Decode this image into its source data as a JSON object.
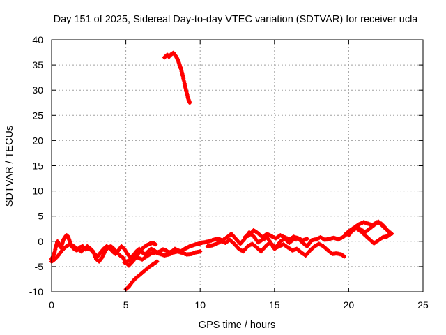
{
  "chart_data": {
    "type": "scatter",
    "title": "Day 151 of 2025, Sidereal Day-to-day VTEC variation (SDTVAR) for receiver ucla",
    "xlabel": "GPS time / hours",
    "ylabel": "SDTVAR / TECUs",
    "xlim": [
      0,
      25
    ],
    "ylim": [
      -10,
      40
    ],
    "x_ticks": [
      0,
      5,
      10,
      15,
      20,
      25
    ],
    "y_ticks": [
      -10,
      -5,
      0,
      5,
      10,
      15,
      20,
      25,
      30,
      35,
      40
    ],
    "grid": true,
    "legend": "none",
    "series": [
      {
        "name": "SDTVAR",
        "color": "#ff0000",
        "marker": "plus",
        "segments": [
          {
            "x": [
              0.0,
              0.1,
              0.2,
              0.3,
              0.4,
              0.5,
              0.6,
              0.7,
              0.8,
              0.9,
              1.0,
              1.1,
              1.2,
              1.3,
              1.5,
              1.7,
              1.9,
              2.1,
              2.3,
              2.5,
              2.7,
              2.9,
              3.1,
              3.3,
              3.5,
              3.7,
              3.9,
              4.1,
              4.3,
              4.5,
              4.7,
              4.9,
              5.1,
              5.3,
              5.5,
              5.7,
              5.9,
              6.1,
              6.3,
              6.5,
              6.7,
              6.9,
              7.1,
              7.3,
              7.5,
              7.7,
              7.9,
              8.1,
              8.3,
              8.5,
              8.7,
              8.9,
              9.1,
              9.3,
              9.5,
              9.7,
              9.9,
              10.1
            ],
            "y": [
              -3.5,
              -3.0,
              -2.2,
              -1.0,
              0.0,
              -0.5,
              -1.2,
              -0.6,
              0.3,
              0.8,
              1.2,
              1.0,
              0.2,
              -0.8,
              -1.5,
              -1.8,
              -1.2,
              -1.0,
              -1.6,
              -1.4,
              -1.8,
              -2.5,
              -3.0,
              -2.2,
              -1.5,
              -1.0,
              -1.3,
              -2.0,
              -2.5,
              -1.8,
              -1.0,
              -1.5,
              -2.5,
              -3.2,
              -2.8,
              -2.0,
              -1.5,
              -2.2,
              -2.6,
              -2.0,
              -1.5,
              -1.8,
              -2.2,
              -2.0,
              -1.6,
              -1.8,
              -2.2,
              -2.0,
              -1.5,
              -1.8,
              -2.0,
              -1.6,
              -1.3,
              -1.0,
              -0.8,
              -0.6,
              -0.5,
              -0.3
            ]
          },
          {
            "x": [
              0.0,
              0.2,
              0.4,
              0.6,
              0.8,
              1.0,
              1.2,
              1.4,
              1.6,
              1.8,
              2.0,
              2.2,
              2.4,
              2.6,
              2.8,
              3.0,
              3.2,
              3.4,
              3.6,
              3.8,
              4.0,
              4.2,
              4.4,
              4.6,
              4.8,
              5.0,
              5.2,
              5.4,
              5.6,
              5.8,
              6.0,
              6.2,
              6.4,
              6.6,
              6.8,
              7.0
            ],
            "y": [
              -4.0,
              -3.6,
              -3.0,
              -2.2,
              -1.5,
              -1.0,
              -0.6,
              -0.8,
              -1.2,
              -1.6,
              -2.0,
              -1.5,
              -1.0,
              -1.4,
              -2.0,
              -3.5,
              -4.0,
              -3.2,
              -2.0,
              -1.2,
              -1.0,
              -1.5,
              -2.2,
              -2.8,
              -3.2,
              -4.2,
              -4.8,
              -4.2,
              -3.5,
              -2.6,
              -1.8,
              -1.2,
              -0.8,
              -0.5,
              -0.3,
              -0.6
            ]
          },
          {
            "x": [
              5.0,
              5.2,
              5.4,
              5.6,
              5.8,
              6.0,
              6.2,
              6.4,
              6.6,
              6.8,
              7.0,
              7.1
            ],
            "y": [
              -9.5,
              -9.0,
              -8.2,
              -7.5,
              -7.0,
              -6.5,
              -6.0,
              -5.5,
              -5.0,
              -4.6,
              -4.2,
              -4.0
            ]
          },
          {
            "x": [
              4.9,
              5.2,
              5.5,
              5.8,
              6.1,
              6.4,
              6.7,
              7.0,
              7.3,
              7.6,
              7.9,
              8.2,
              8.5,
              8.8,
              9.1,
              9.4,
              9.7,
              10.0
            ],
            "y": [
              -4.2,
              -3.8,
              -3.4,
              -3.2,
              -3.6,
              -3.0,
              -2.4,
              -2.2,
              -2.5,
              -2.8,
              -2.6,
              -2.2,
              -2.0,
              -2.3,
              -2.6,
              -2.5,
              -2.2,
              -2.0
            ]
          },
          {
            "x": [
              7.6,
              7.7,
              7.8,
              7.9,
              8.0,
              8.1,
              8.2,
              8.3,
              8.4,
              8.5,
              8.6,
              8.7,
              8.8,
              8.9,
              9.0,
              9.1,
              9.2,
              9.3
            ],
            "y": [
              36.5,
              36.8,
              37.0,
              36.6,
              37.0,
              37.2,
              37.4,
              37.0,
              36.6,
              36.0,
              35.2,
              34.3,
              33.2,
              32.0,
              30.6,
              29.4,
              28.3,
              27.5
            ]
          },
          {
            "x": [
              10.0,
              10.3,
              10.6,
              10.9,
              11.2,
              11.5,
              11.8,
              12.1,
              12.4,
              12.7,
              13.0,
              13.3,
              13.6,
              13.9,
              14.2,
              14.5,
              14.8,
              15.1,
              15.4,
              15.7,
              16.0,
              16.3,
              16.6,
              16.9,
              17.2,
              17.5,
              17.8,
              18.1,
              18.4,
              18.7,
              19.0,
              19.3,
              19.6,
              19.9,
              20.2
            ],
            "y": [
              -0.3,
              -0.2,
              0.0,
              0.3,
              0.5,
              0.2,
              0.8,
              1.5,
              0.5,
              -0.5,
              0.5,
              1.8,
              1.0,
              -0.2,
              0.3,
              0.8,
              -0.5,
              -1.2,
              0.0,
              0.5,
              -0.3,
              0.4,
              0.6,
              -0.3,
              -1.0,
              0.2,
              0.4,
              0.8,
              0.3,
              0.5,
              0.7,
              0.4,
              0.8,
              1.5,
              2.0
            ]
          },
          {
            "x": [
              10.5,
              10.8,
              11.1,
              11.4,
              11.7,
              12.0,
              12.3,
              12.6,
              12.9,
              13.2,
              13.5,
              13.8,
              14.1,
              14.4,
              14.7,
              15.0,
              15.3,
              15.6,
              15.9,
              16.2,
              16.5,
              16.8,
              17.1,
              17.4,
              17.7,
              18.0,
              18.3,
              18.6,
              18.9,
              19.2,
              19.5,
              19.7
            ],
            "y": [
              -1.0,
              -0.8,
              -0.5,
              0.0,
              -0.3,
              0.3,
              -0.5,
              -1.5,
              -2.0,
              -1.0,
              -0.5,
              -1.2,
              -2.0,
              -1.0,
              -0.2,
              -1.5,
              -1.0,
              -0.6,
              -1.2,
              -1.8,
              -1.5,
              -2.2,
              -2.8,
              -1.8,
              -1.0,
              -0.5,
              -1.0,
              -1.8,
              -2.5,
              -2.4,
              -2.6,
              -3.0
            ]
          },
          {
            "x": [
              13.0,
              13.3,
              13.6,
              13.9,
              14.2,
              14.5,
              14.8,
              15.1,
              15.4,
              15.7,
              16.0,
              16.3,
              16.6,
              16.9,
              17.2
            ],
            "y": [
              0.8,
              1.2,
              2.2,
              1.6,
              0.8,
              1.5,
              1.0,
              0.6,
              1.2,
              0.8,
              0.4,
              0.9,
              0.6,
              0.2,
              0.5
            ]
          },
          {
            "x": [
              19.8,
              20.1,
              20.4,
              20.7,
              21.0,
              21.3,
              21.6,
              21.9,
              22.2,
              22.5,
              22.8,
              22.6,
              22.3,
              22.0,
              21.7,
              21.4,
              21.1,
              20.8,
              20.5,
              20.2,
              20.0
            ],
            "y": [
              1.5,
              2.2,
              2.8,
              3.4,
              3.8,
              3.5,
              3.2,
              3.8,
              3.5,
              2.6,
              1.4,
              1.0,
              0.8,
              0.2,
              -0.4,
              0.4,
              1.2,
              2.0,
              2.6,
              2.0,
              1.2
            ]
          },
          {
            "x": [
              20.5,
              20.8,
              21.1,
              21.4,
              21.7,
              22.0,
              22.3,
              22.6,
              22.9
            ],
            "y": [
              3.0,
              2.4,
              1.8,
              2.5,
              3.2,
              3.9,
              3.0,
              2.2,
              1.5
            ]
          }
        ]
      }
    ]
  }
}
